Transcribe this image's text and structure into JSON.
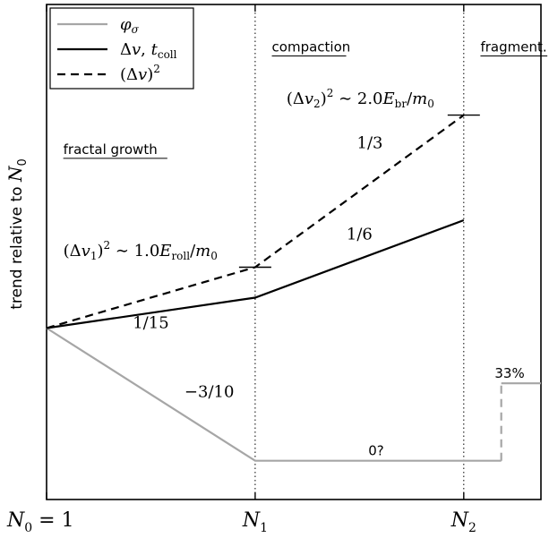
{
  "chart_data": {
    "type": "line",
    "title": "",
    "xlabel": "",
    "ylabel": "trend relative to N0",
    "ylabel_prefix": "trend relative to ",
    "ylabel_var": "N",
    "ylabel_sub": "0",
    "x_ticks": [
      {
        "pos": 0,
        "var": "N",
        "sub": "0",
        "suffix": " = 1"
      },
      {
        "pos": 1,
        "var": "N",
        "sub": "1",
        "suffix": ""
      },
      {
        "pos": 2,
        "var": "N",
        "sub": "2",
        "suffix": ""
      }
    ],
    "xlim": [
      0,
      2.37
    ],
    "ylim": [
      -0.62,
      1.17
    ],
    "grid": false,
    "legend_placement": "top-left",
    "colors": {
      "phi": "#a6a6a6",
      "dv": "#000000",
      "dv2": "#000000"
    },
    "regions": [
      {
        "label": "fractal growth",
        "x": 0.08,
        "y": 0.63
      },
      {
        "label": "compaction",
        "x": 1.08,
        "y": 1.0
      },
      {
        "label": "fragment.",
        "x": 2.08,
        "y": 1.0
      }
    ],
    "legend": [
      {
        "key": "phi",
        "style": "gray-solid",
        "main": "φ",
        "sub": "σ",
        "after": ""
      },
      {
        "key": "dv",
        "style": "black-solid",
        "main": "Δ",
        "italic": "v",
        "mid": ", ",
        "italic2": "t",
        "sub": "coll"
      },
      {
        "key": "dv2",
        "style": "black-dashed",
        "main": "(Δ",
        "italic": "v",
        "after": ")",
        "sup": "2"
      }
    ],
    "series": [
      {
        "key": "phi",
        "color": "#a6a6a6",
        "dash": "",
        "points": [
          [
            0,
            0
          ],
          [
            1,
            -0.48
          ],
          [
            2.18,
            -0.48
          ]
        ]
      },
      {
        "key": "phi-fragment",
        "color": "#a6a6a6",
        "dash": "9,6",
        "points": [
          [
            2.18,
            -0.48
          ],
          [
            2.18,
            -0.2
          ]
        ]
      },
      {
        "key": "phi-fragment-level",
        "color": "#a6a6a6",
        "dash": "",
        "points": [
          [
            2.18,
            -0.2
          ],
          [
            2.37,
            -0.2
          ]
        ]
      },
      {
        "key": "dv",
        "color": "#000000",
        "dash": "",
        "points": [
          [
            0,
            0
          ],
          [
            1,
            0.11
          ],
          [
            2,
            0.39
          ]
        ]
      },
      {
        "key": "dv2",
        "color": "#000000",
        "dash": "9,6",
        "points": [
          [
            0,
            0
          ],
          [
            1,
            0.22
          ],
          [
            2,
            0.77
          ]
        ]
      }
    ],
    "slope_labels": [
      {
        "text": "1/15",
        "x": 0.5,
        "y": 0.0
      },
      {
        "text": "1/6",
        "x": 1.5,
        "y": 0.32
      },
      {
        "text": "1/3",
        "x": 1.55,
        "y": 0.65
      },
      {
        "text": "−3/10",
        "x": 0.78,
        "y": -0.25
      },
      {
        "text": "0?",
        "x": 1.58,
        "y": -0.46
      },
      {
        "text": "33%",
        "x": 2.22,
        "y": -0.18
      }
    ],
    "thresholds": [
      {
        "x": 1.0,
        "y": 0.22,
        "pre": "(Δ",
        "ivar": "v",
        "sub": "1",
        "mid": ")",
        "sup": "2",
        "rel": " ∼ 1.0",
        "E": "E",
        "Esub": "roll",
        "tail": "/",
        "m": "m",
        "msub": "0",
        "label_x": 0.08,
        "label_y": 0.26
      },
      {
        "x": 2.0,
        "y": 0.77,
        "pre": "(Δ",
        "ivar": "v",
        "sub": "2",
        "mid": ")",
        "sup": "2",
        "rel": " ∼ 2.0",
        "E": "E",
        "Esub": "br",
        "tail": "/",
        "m": "m",
        "msub": "0",
        "label_x": 1.15,
        "label_y": 0.81
      }
    ]
  }
}
